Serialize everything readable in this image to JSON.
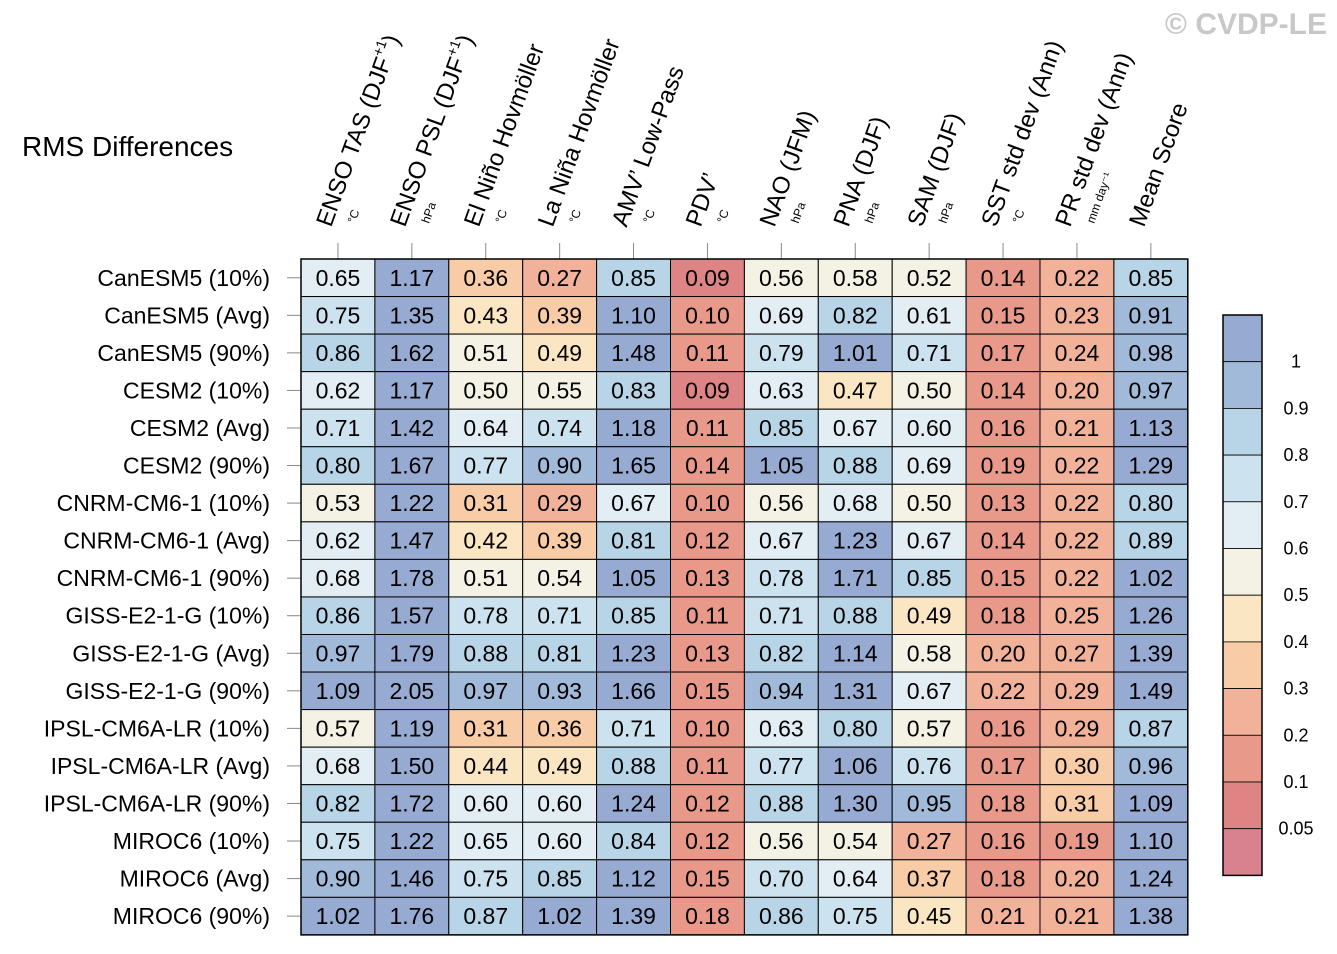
{
  "watermark": "© CVDP-LE",
  "chart_data": {
    "type": "heatmap",
    "title": "RMS Differences",
    "columns": [
      {
        "label": "ENSO TAS (DJF",
        "sup": "+1",
        "close": ")",
        "unit": "°C"
      },
      {
        "label": "ENSO PSL (DJF",
        "sup": "+1",
        "close": ")",
        "unit": "hPa"
      },
      {
        "label": "El Niño Hovmöller",
        "sup": "",
        "close": "",
        "unit": "°C"
      },
      {
        "label": "La Niña Hovmöller",
        "sup": "",
        "close": "",
        "unit": "°C"
      },
      {
        "label": "AMV’ Low-Pass",
        "sup": "",
        "close": "",
        "unit": "°C"
      },
      {
        "label": "PDV’",
        "sup": "",
        "close": "",
        "unit": "°C"
      },
      {
        "label": "NAO (JFM)",
        "sup": "",
        "close": "",
        "unit": "hPa"
      },
      {
        "label": "PNA (DJF)",
        "sup": "",
        "close": "",
        "unit": "hPa"
      },
      {
        "label": "SAM (DJF)",
        "sup": "",
        "close": "",
        "unit": "hPa"
      },
      {
        "label": "SST std dev (Ann)",
        "sup": "",
        "close": "",
        "unit": "°C"
      },
      {
        "label": "PR std dev (Ann)",
        "sup": "",
        "close": "",
        "unit": "mm day⁻¹"
      },
      {
        "label": "Mean Score",
        "sup": "",
        "close": "",
        "unit": ""
      }
    ],
    "rows": [
      "CanESM5 (10%)",
      "CanESM5 (Avg)",
      "CanESM5 (90%)",
      "CESM2 (10%)",
      "CESM2 (Avg)",
      "CESM2 (90%)",
      "CNRM-CM6-1 (10%)",
      "CNRM-CM6-1 (Avg)",
      "CNRM-CM6-1 (90%)",
      "GISS-E2-1-G (10%)",
      "GISS-E2-1-G (Avg)",
      "GISS-E2-1-G (90%)",
      "IPSL-CM6A-LR (10%)",
      "IPSL-CM6A-LR (Avg)",
      "IPSL-CM6A-LR (90%)",
      "MIROC6 (10%)",
      "MIROC6 (Avg)",
      "MIROC6 (90%)"
    ],
    "values": [
      [
        "0.65",
        "1.17",
        "0.36",
        "0.27",
        "0.85",
        "0.09",
        "0.56",
        "0.58",
        "0.52",
        "0.14",
        "0.22",
        "0.85"
      ],
      [
        "0.75",
        "1.35",
        "0.43",
        "0.39",
        "1.10",
        "0.10",
        "0.69",
        "0.82",
        "0.61",
        "0.15",
        "0.23",
        "0.91"
      ],
      [
        "0.86",
        "1.62",
        "0.51",
        "0.49",
        "1.48",
        "0.11",
        "0.79",
        "1.01",
        "0.71",
        "0.17",
        "0.24",
        "0.98"
      ],
      [
        "0.62",
        "1.17",
        "0.50",
        "0.55",
        "0.83",
        "0.09",
        "0.63",
        "0.47",
        "0.50",
        "0.14",
        "0.20",
        "0.97"
      ],
      [
        "0.71",
        "1.42",
        "0.64",
        "0.74",
        "1.18",
        "0.11",
        "0.85",
        "0.67",
        "0.60",
        "0.16",
        "0.21",
        "1.13"
      ],
      [
        "0.80",
        "1.67",
        "0.77",
        "0.90",
        "1.65",
        "0.14",
        "1.05",
        "0.88",
        "0.69",
        "0.19",
        "0.22",
        "1.29"
      ],
      [
        "0.53",
        "1.22",
        "0.31",
        "0.29",
        "0.67",
        "0.10",
        "0.56",
        "0.68",
        "0.50",
        "0.13",
        "0.22",
        "0.80"
      ],
      [
        "0.62",
        "1.47",
        "0.42",
        "0.39",
        "0.81",
        "0.12",
        "0.67",
        "1.23",
        "0.67",
        "0.14",
        "0.22",
        "0.89"
      ],
      [
        "0.68",
        "1.78",
        "0.51",
        "0.54",
        "1.05",
        "0.13",
        "0.78",
        "1.71",
        "0.85",
        "0.15",
        "0.22",
        "1.02"
      ],
      [
        "0.86",
        "1.57",
        "0.78",
        "0.71",
        "0.85",
        "0.11",
        "0.71",
        "0.88",
        "0.49",
        "0.18",
        "0.25",
        "1.26"
      ],
      [
        "0.97",
        "1.79",
        "0.88",
        "0.81",
        "1.23",
        "0.13",
        "0.82",
        "1.14",
        "0.58",
        "0.20",
        "0.27",
        "1.39"
      ],
      [
        "1.09",
        "2.05",
        "0.97",
        "0.93",
        "1.66",
        "0.15",
        "0.94",
        "1.31",
        "0.67",
        "0.22",
        "0.29",
        "1.49"
      ],
      [
        "0.57",
        "1.19",
        "0.31",
        "0.36",
        "0.71",
        "0.10",
        "0.63",
        "0.80",
        "0.57",
        "0.16",
        "0.29",
        "0.87"
      ],
      [
        "0.68",
        "1.50",
        "0.44",
        "0.49",
        "0.88",
        "0.11",
        "0.77",
        "1.06",
        "0.76",
        "0.17",
        "0.30",
        "0.96"
      ],
      [
        "0.82",
        "1.72",
        "0.60",
        "0.60",
        "1.24",
        "0.12",
        "0.88",
        "1.30",
        "0.95",
        "0.18",
        "0.31",
        "1.09"
      ],
      [
        "0.75",
        "1.22",
        "0.65",
        "0.60",
        "0.84",
        "0.12",
        "0.56",
        "0.54",
        "0.27",
        "0.16",
        "0.19",
        "1.10"
      ],
      [
        "0.90",
        "1.46",
        "0.75",
        "0.85",
        "1.12",
        "0.15",
        "0.70",
        "0.64",
        "0.37",
        "0.18",
        "0.20",
        "1.24"
      ],
      [
        "1.02",
        "1.76",
        "0.87",
        "1.02",
        "1.39",
        "0.18",
        "0.86",
        "0.75",
        "0.45",
        "0.21",
        "0.21",
        "1.38"
      ]
    ],
    "colorbar": {
      "levels": [
        "0.05",
        "0.1",
        "0.2",
        "0.3",
        "0.4",
        "0.5",
        "0.6",
        "0.7",
        "0.8",
        "0.9",
        "1"
      ],
      "colors": [
        "#d8818f",
        "#df8484",
        "#e9998a",
        "#f2b29a",
        "#f8cca6",
        "#fbe6c4",
        "#f3f2e4",
        "#e2eef4",
        "#cce2ee",
        "#b8d4e7",
        "#a2bad9",
        "#97aad2"
      ]
    }
  }
}
